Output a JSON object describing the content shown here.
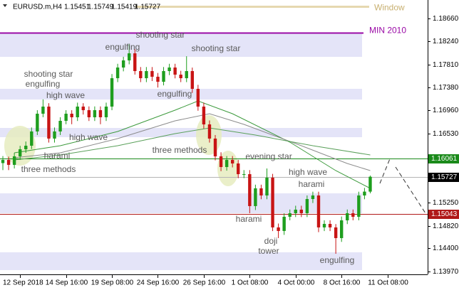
{
  "chart_data": {
    "type": "candlestick",
    "symbol": "EURUSD.m,H4",
    "x": [
      0,
      1,
      2,
      3,
      4,
      5,
      6,
      7,
      8,
      9,
      10,
      11,
      12,
      13,
      14,
      15,
      16,
      17,
      18,
      19,
      20,
      21,
      22,
      23,
      24,
      25,
      26,
      27,
      28,
      29,
      30,
      31,
      32,
      33,
      34,
      35,
      36,
      37,
      38,
      39,
      40,
      41,
      42,
      43,
      44,
      45,
      46,
      47,
      48,
      49,
      50,
      51,
      52,
      53,
      54,
      55,
      56,
      57,
      58,
      59,
      60,
      61,
      62,
      63,
      64
    ],
    "open": [
      1.1598,
      1.16039,
      1.15947,
      1.16105,
      1.16236,
      1.16302,
      1.16566,
      1.16895,
      1.17027,
      1.16434,
      1.16566,
      1.16763,
      1.16895,
      1.16829,
      1.17027,
      1.16961,
      1.16829,
      1.16961,
      1.16829,
      1.17027,
      1.17553,
      1.17751,
      1.17883,
      1.18014,
      1.17685,
      1.17553,
      1.17685,
      1.1758,
      1.17487,
      1.17685,
      1.17751,
      1.17619,
      1.17553,
      1.17685,
      1.17356,
      1.17027,
      1.16697,
      1.16434,
      1.16105,
      1.15907,
      1.16039,
      1.15973,
      1.15775,
      1.15775,
      1.15183,
      1.15512,
      1.1538,
      1.1571,
      1.14788,
      1.14722,
      1.14985,
      1.15051,
      1.15117,
      1.15051,
      1.15314,
      1.1538,
      1.14788,
      1.14853,
      1.14788,
      1.1459,
      1.14919,
      1.15051,
      1.14985,
      1.1538,
      1.15451
    ],
    "high": [
      1.1611,
      1.161,
      1.1617,
      1.163,
      1.1638,
      1.1664,
      1.1696,
      1.1716,
      1.1709,
      1.1664,
      1.1683,
      1.1696,
      1.1696,
      1.171,
      1.1709,
      1.1703,
      1.1703,
      1.1703,
      1.171,
      1.1763,
      1.1782,
      1.1795,
      1.1818,
      1.1809,
      1.1776,
      1.1776,
      1.1776,
      1.1765,
      1.1776,
      1.1782,
      1.1782,
      1.1769,
      1.1796,
      1.1775,
      1.1743,
      1.171,
      1.1677,
      1.165,
      1.1618,
      1.1611,
      1.1611,
      1.1604,
      1.1585,
      1.1585,
      1.1558,
      1.1558,
      1.1588,
      1.1578,
      1.1486,
      1.1505,
      1.1512,
      1.1519,
      1.1519,
      1.1538,
      1.1545,
      1.1545,
      1.1492,
      1.1492,
      1.1485,
      1.1499,
      1.1512,
      1.1512,
      1.1545,
      1.1552,
      1.15749
    ],
    "low": [
      1.1585,
      1.1585,
      1.1588,
      1.1604,
      1.1617,
      1.1624,
      1.165,
      1.1683,
      1.1636,
      1.1636,
      1.165,
      1.167,
      1.167,
      1.1676,
      1.1688,
      1.1676,
      1.1676,
      1.167,
      1.1676,
      1.1696,
      1.1748,
      1.1768,
      1.1781,
      1.1762,
      1.1748,
      1.1748,
      1.175,
      1.1738,
      1.1742,
      1.1761,
      1.1755,
      1.1748,
      1.1748,
      1.1728,
      1.1695,
      1.1662,
      1.1636,
      1.1603,
      1.1583,
      1.1584,
      1.159,
      1.157,
      1.157,
      1.1505,
      1.1511,
      1.1531,
      1.1531,
      1.1472,
      1.1459,
      1.1465,
      1.1492,
      1.1498,
      1.1498,
      1.1498,
      1.1524,
      1.147,
      1.1472,
      1.1472,
      1.143,
      1.1452,
      1.1485,
      1.1492,
      1.1492,
      1.1531,
      1.15419
    ],
    "close": [
      1.16039,
      1.15947,
      1.16105,
      1.16236,
      1.16302,
      1.16566,
      1.16895,
      1.17027,
      1.16434,
      1.16566,
      1.16763,
      1.16895,
      1.16829,
      1.17027,
      1.16961,
      1.16829,
      1.16961,
      1.16829,
      1.17027,
      1.17553,
      1.17751,
      1.17883,
      1.18014,
      1.17685,
      1.17553,
      1.17685,
      1.1758,
      1.17487,
      1.17685,
      1.17751,
      1.17619,
      1.17553,
      1.17685,
      1.17356,
      1.17027,
      1.16697,
      1.16434,
      1.16105,
      1.15907,
      1.16039,
      1.15973,
      1.15775,
      1.15775,
      1.15183,
      1.15512,
      1.1538,
      1.1571,
      1.14788,
      1.14722,
      1.14985,
      1.15051,
      1.15117,
      1.15051,
      1.15314,
      1.1538,
      1.14788,
      1.14853,
      1.14788,
      1.1459,
      1.14919,
      1.15051,
      1.14985,
      1.1538,
      1.15451,
      1.15727
    ],
    "up_color": "#1e9e1e",
    "down_color": "#c81414",
    "xlim": [
      -0.5,
      74
    ],
    "xticks": [
      {
        "value": 3,
        "label": "12 Sep 2018"
      },
      {
        "value": 11,
        "label": "14 Sep 16:00"
      },
      {
        "value": 19,
        "label": "19 Sep 08:00"
      },
      {
        "value": 27,
        "label": "24 Sep 16:00"
      },
      {
        "value": 35,
        "label": "26 Sep 16:00"
      },
      {
        "value": 43,
        "label": "1 Oct 08:00"
      },
      {
        "value": 51,
        "label": "4 Oct 00:00"
      },
      {
        "value": 59,
        "label": "8 Oct 16:00"
      },
      {
        "value": 67,
        "label": "11 Oct 08:00"
      }
    ],
    "ylim": [
      1.13918,
      1.19002
    ],
    "yticks": [
      {
        "value": 1.1866,
        "label": "1.18660"
      },
      {
        "value": 1.1824,
        "label": "1.18240"
      },
      {
        "value": 1.1781,
        "label": "1.17810"
      },
      {
        "value": 1.1738,
        "label": "1.17380"
      },
      {
        "value": 1.1696,
        "label": "1.16960"
      },
      {
        "value": 1.1653,
        "label": "1.16530"
      },
      {
        "value": 1.1525,
        "label": "1.15250"
      },
      {
        "value": 1.1482,
        "label": "1.14820"
      },
      {
        "value": 1.144,
        "label": "1.14400"
      },
      {
        "value": 1.1397,
        "label": "1.13970"
      }
    ],
    "zones": {
      "color": "#e4e4f8",
      "ranges": [
        [
          1.18396,
          1.17948
        ],
        [
          1.17356,
          1.17158
        ],
        [
          1.16631,
          1.1646
        ],
        [
          1.1542,
          1.15051
        ],
        [
          1.14327,
          1.13997
        ]
      ]
    },
    "moving_averages": [
      {
        "color": "#3c9a3c",
        "x": [
          2,
          10,
          20,
          30,
          34,
          40,
          50,
          58,
          64
        ],
        "values": [
          1.1617,
          1.16302,
          1.16566,
          1.16961,
          1.17132,
          1.16895,
          1.16368,
          1.15841,
          1.15512
        ]
      },
      {
        "color": "#8c8c8c",
        "x": [
          2,
          10,
          20,
          30,
          36,
          42,
          52,
          60,
          64
        ],
        "values": [
          1.16078,
          1.1617,
          1.16434,
          1.16763,
          1.16895,
          1.16697,
          1.16302,
          1.15973,
          1.15841
        ]
      },
      {
        "color": "#5aa05a",
        "x": [
          2,
          10,
          20,
          30,
          36,
          44,
          54,
          64
        ],
        "values": [
          1.16039,
          1.16131,
          1.16302,
          1.16526,
          1.16631,
          1.165,
          1.16302,
          1.16131
        ]
      }
    ],
    "levels": [
      {
        "name": "Window",
        "value": 1.18883,
        "color": "#e6d8b0"
      },
      {
        "name": "MIN 2010",
        "value": 1.18396,
        "color": "#9a0aa6"
      },
      {
        "value": 1.16061,
        "color": "#1a8a1a",
        "axis_label": true
      },
      {
        "value": 1.15727,
        "color": "#b4b4b4",
        "axis_label": true
      },
      {
        "value": 1.15043,
        "color": "#b01818",
        "axis_label": true
      }
    ],
    "annotations": [
      "shooting star",
      "engulfing",
      "shooting star",
      "shooting star",
      "engulfing",
      "high wave",
      "engulfing",
      "high wave",
      "three methods",
      "harami",
      "three methods",
      "evening star",
      "high wave",
      "harami",
      "harami",
      "doji",
      "tower",
      "engulfing"
    ]
  }
}
